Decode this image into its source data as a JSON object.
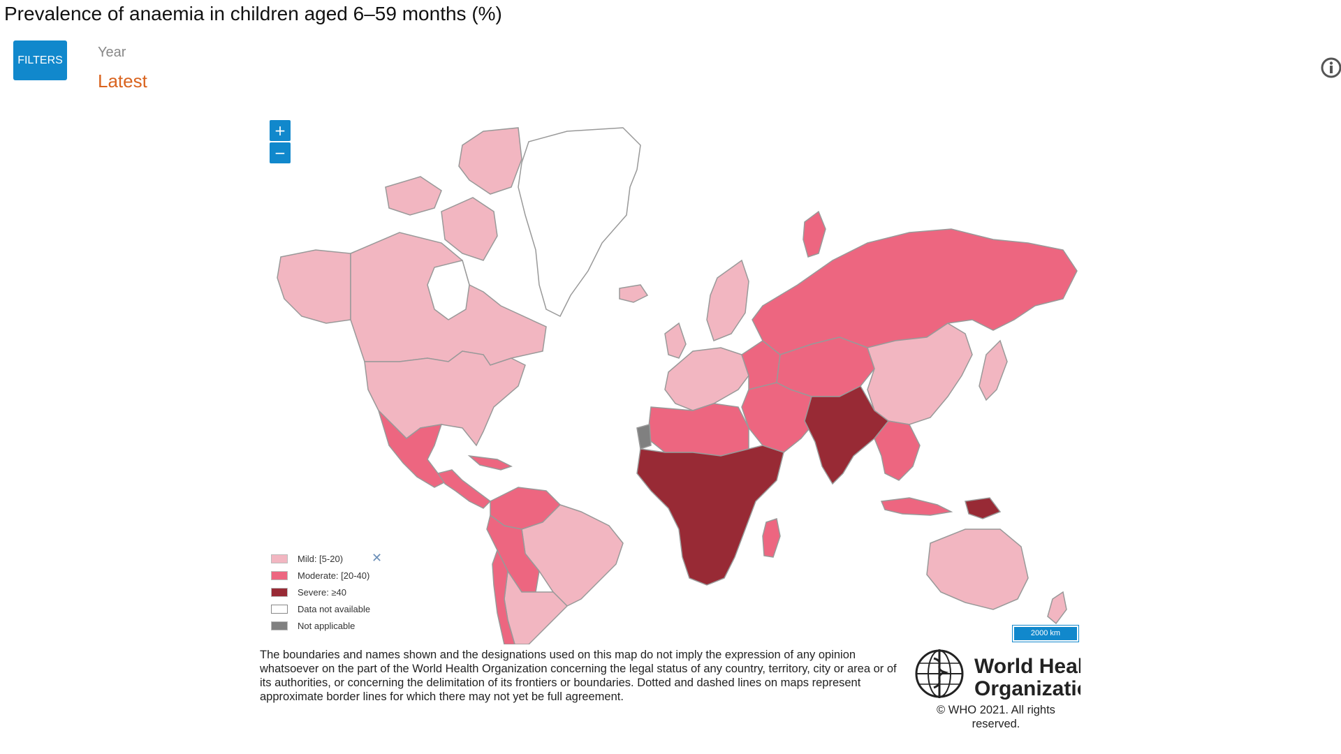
{
  "page_title": "Prevalence of anaemia in children aged 6–59 months (%)",
  "filters": {
    "button_label": "FILTERS",
    "year_label": "Year",
    "year_value": "Latest"
  },
  "icons": {
    "info": "info-icon",
    "zoom_in": "plus-icon",
    "zoom_out": "minus-icon",
    "legend_close": "close-icon"
  },
  "zoom": {
    "in_label": "+",
    "out_label": "−"
  },
  "legend": {
    "close_symbol": "✕",
    "items": [
      {
        "label": "Mild: [5-20)",
        "color": "#f2b6c1"
      },
      {
        "label": "Moderate: [20-40)",
        "color": "#ed6680"
      },
      {
        "label": "Severe: ≥40",
        "color": "#982a35"
      },
      {
        "label": "Data not available",
        "color": "#ffffff"
      },
      {
        "label": "Not applicable",
        "color": "#808080"
      }
    ]
  },
  "scale_bar": {
    "label": "2000 km"
  },
  "disclaimer": "The boundaries and names shown and the designations used on this map do not imply the expression of any opinion whatsoever on the part of the World Health Organization concerning the legal status of any country, territory, city or area or of its authorities, or concerning the delimitation of its frontiers or boundaries. Dotted and dashed lines on maps represent approximate border lines for which there may not yet be full agreement.",
  "who_logo": {
    "line1": "World Health",
    "line2": "Organization"
  },
  "copyright": "© WHO 2021. All rights reserved.",
  "colors": {
    "accent": "#1188cc",
    "year_value": "#d9631e",
    "mild": "#f2b6c1",
    "moderate": "#ed6680",
    "severe": "#982a35",
    "not_applicable": "#808080",
    "no_data": "#ffffff"
  }
}
